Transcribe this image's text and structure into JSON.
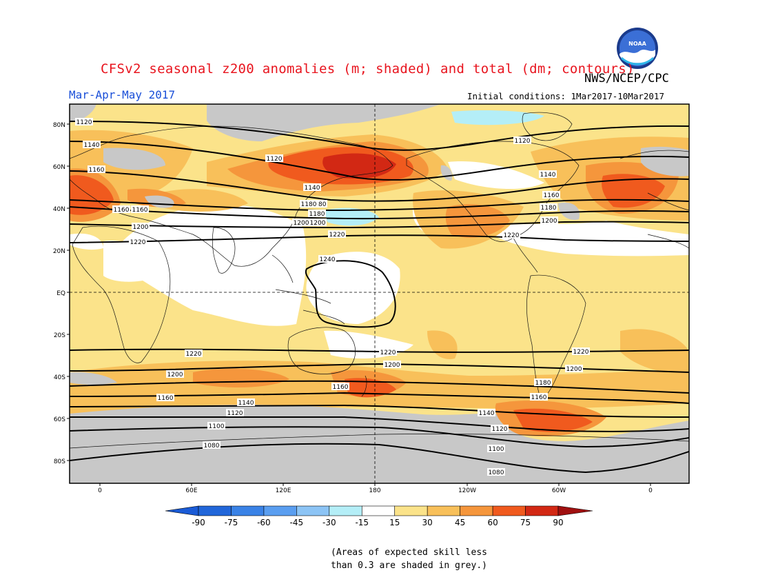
{
  "header": {
    "title": "CFSv2 seasonal z200 anomalies (m; shaded) and total (dm; contours)",
    "agency": "NWS/NCEP/CPC",
    "season": "Mar-Apr-May 2017",
    "initial_conditions": "Initial conditions: 1Mar2017-10Mar2017"
  },
  "logo": {
    "name": "noaa-logo",
    "text": "NOAA"
  },
  "axes": {
    "lat_labels": [
      "80N",
      "60N",
      "40N",
      "20N",
      "EQ",
      "20S",
      "40S",
      "60S",
      "80S"
    ],
    "lon_labels": [
      "0",
      "60E",
      "120E",
      "180",
      "120W",
      "60W",
      "0"
    ]
  },
  "colorbar": {
    "labels": [
      "-90",
      "-75",
      "-60",
      "-45",
      "-30",
      "-15",
      "15",
      "30",
      "45",
      "60",
      "75",
      "90"
    ],
    "colors": [
      "#2166d9",
      "#3a82e6",
      "#5a9ef0",
      "#8cc4f5",
      "#b4eef7",
      "#ffffff",
      "#fbe38a",
      "#f8c05a",
      "#f5963c",
      "#f05a1e",
      "#d22814"
    ],
    "under_color": "#1a5bd6",
    "over_color": "#a01010",
    "skill_grey": "#c8c8c8"
  },
  "contour_labels": [
    "1120",
    "1140",
    "1160",
    "1160",
    "1180",
    "1200",
    "1220",
    "1120",
    "1140",
    "1180",
    "1200",
    "1220",
    "1240",
    "1120",
    "1140",
    "1160",
    "1180",
    "1200",
    "1220",
    "1160",
    "1180",
    "1200",
    "1220",
    "1200",
    "1160",
    "1140",
    "1120",
    "1100",
    "1080",
    "1160",
    "1220",
    "1200",
    "1140",
    "1120",
    "1100",
    "1080",
    "1220",
    "1200",
    "1180",
    "1160"
  ],
  "note": {
    "line1": "(Areas of expected skill less",
    "line2": "than 0.3 are shaded in grey.)"
  }
}
